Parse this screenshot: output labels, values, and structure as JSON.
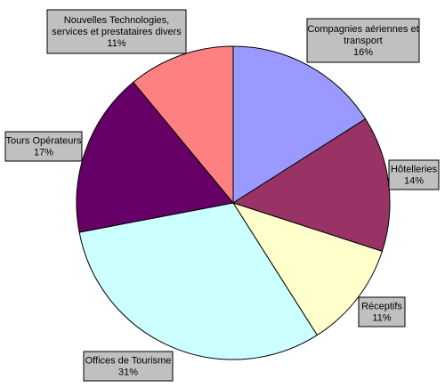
{
  "chart_data": {
    "type": "pie",
    "start_angle_deg": 0,
    "direction": "clockwise",
    "legend": "none",
    "slices": [
      {
        "label_lines": [
          "Compagnies aériennes et",
          "transport"
        ],
        "value": 16,
        "value_label": "16%",
        "color": "#9999ff"
      },
      {
        "label_lines": [
          "Hôtelleries"
        ],
        "value": 14,
        "value_label": "14%",
        "color": "#993366"
      },
      {
        "label_lines": [
          "Réceptifs"
        ],
        "value": 11,
        "value_label": "11%",
        "color": "#ffffcc"
      },
      {
        "label_lines": [
          "Offices de Tourisme"
        ],
        "value": 31,
        "value_label": "31%",
        "color": "#ccffff"
      },
      {
        "label_lines": [
          "Tours Opérateurs"
        ],
        "value": 17,
        "value_label": "17%",
        "color": "#660066"
      },
      {
        "label_lines": [
          "Nouvelles Technologies,",
          "services et prestataires divers"
        ],
        "value": 11,
        "value_label": "11%",
        "color": "#ff8080"
      }
    ]
  }
}
